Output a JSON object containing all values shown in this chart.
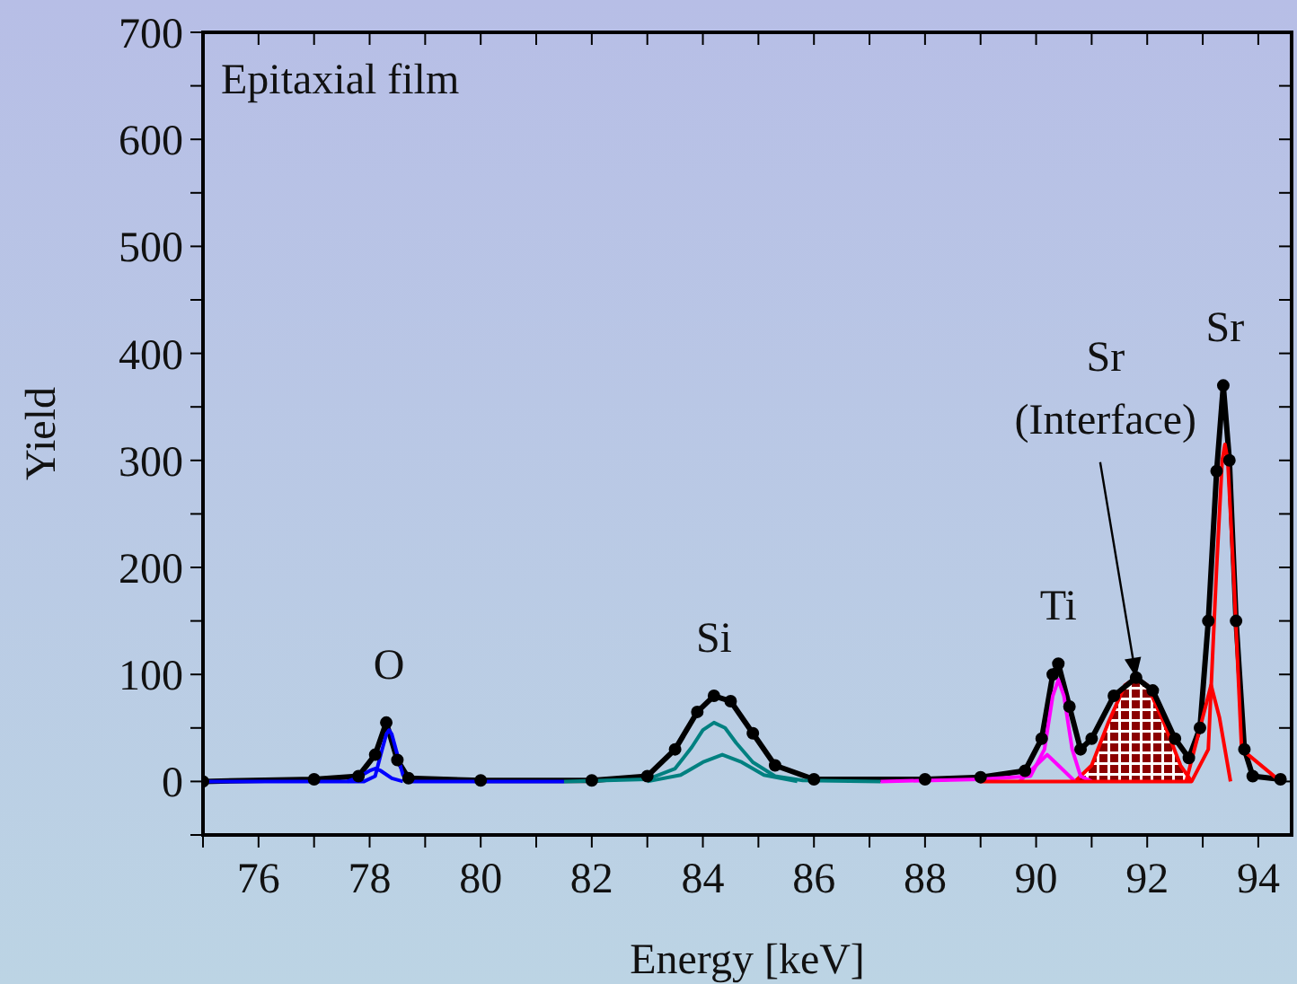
{
  "chart_data": {
    "type": "line",
    "xlabel": "Energy [keV]",
    "ylabel": "Yield",
    "xlim": [
      75,
      94.6
    ],
    "xticks": [
      {
        "value": 75,
        "label": null
      },
      76,
      {
        "value": 77,
        "label": null
      },
      78,
      {
        "value": 79,
        "label": null
      },
      80,
      {
        "value": 81,
        "label": null
      },
      82,
      {
        "value": 83,
        "label": null
      },
      84,
      {
        "value": 85,
        "label": null
      },
      86,
      {
        "value": 87,
        "label": null
      },
      88,
      {
        "value": 89,
        "label": null
      },
      90,
      {
        "value": 91,
        "label": null
      },
      92,
      {
        "value": 93,
        "label": null
      },
      94
    ],
    "ylim": [
      -50,
      700
    ],
    "yticks": [
      {
        "value": -50,
        "label": null
      },
      0,
      {
        "value": 50,
        "label": null
      },
      100,
      {
        "value": 150,
        "label": null
      },
      200,
      {
        "value": 250,
        "label": null
      },
      300,
      {
        "value": 350,
        "label": null
      },
      400,
      {
        "value": 450,
        "label": null
      },
      500,
      {
        "value": 550,
        "label": null
      },
      600,
      {
        "value": 650,
        "label": null
      },
      700
    ],
    "annotations": [
      "Epitaxial film",
      "O",
      "Si",
      "Ti",
      {
        "text": "Sr (Interface)",
        "x": 91.8,
        "y": 97
      },
      "Sr"
    ],
    "series": [
      {
        "color": "#0000ff",
        "x": [
          75,
          77.9,
          78.1,
          78.2,
          78.3,
          78.35,
          78.4,
          78.5,
          78.6,
          78.7,
          81.5
        ],
        "values": [
          0,
          0,
          5,
          25,
          44,
          48,
          44,
          25,
          6,
          0,
          0
        ]
      },
      {
        "color": "#0000ff",
        "x": [
          77.6,
          77.8,
          78,
          78.1,
          78.2,
          78.4,
          78.6
        ],
        "values": [
          0,
          4,
          10,
          12,
          10,
          3,
          0
        ]
      },
      {
        "color": "#008080",
        "x": [
          81.5,
          83,
          83.5,
          83.8,
          84,
          84.2,
          84.4,
          84.6,
          84.9,
          85.3,
          85.8,
          87.2
        ],
        "values": [
          0,
          2,
          12,
          32,
          48,
          55,
          50,
          36,
          18,
          5,
          1,
          0
        ]
      },
      {
        "color": "#008080",
        "x": [
          83,
          83.6,
          84,
          84.35,
          84.7,
          85.1,
          85.7
        ],
        "values": [
          0,
          6,
          18,
          25,
          18,
          6,
          0
        ]
      },
      {
        "color": "#ff00ff",
        "x": [
          87.2,
          89,
          89.9,
          90.15,
          90.3,
          90.4,
          90.5,
          90.65,
          90.8,
          91
        ],
        "values": [
          0,
          2,
          5,
          30,
          80,
          95,
          80,
          30,
          5,
          0
        ]
      },
      {
        "color": "#ff00ff",
        "x": [
          89.7,
          90,
          90.2,
          90.4,
          90.7
        ],
        "values": [
          0,
          15,
          25,
          15,
          0
        ]
      },
      {
        "type": "area",
        "color": "#ff0000",
        "x": [
          90.7,
          91,
          91.3,
          91.6,
          91.8,
          92,
          92.3,
          92.6,
          92.8
        ],
        "values": [
          0,
          15,
          55,
          90,
          97,
          90,
          55,
          15,
          0
        ]
      },
      {
        "color": "#ff0000",
        "x": [
          89,
          92.8,
          93.1,
          93.25,
          93.35,
          93.4,
          93.45,
          93.55,
          93.7,
          94.4
        ],
        "values": [
          0,
          0,
          30,
          200,
          300,
          315,
          300,
          200,
          30,
          0
        ]
      },
      {
        "color": "#ff0000",
        "x": [
          92.7,
          93,
          93.15,
          93.3,
          93.5
        ],
        "values": [
          0,
          60,
          90,
          60,
          0
        ]
      },
      {
        "color": "#000000",
        "marker": "circle",
        "x": [
          75,
          77,
          77.8,
          78.1,
          78.3,
          78.5,
          78.7,
          80,
          82,
          83,
          83.5,
          83.9,
          84.2,
          84.5,
          84.9,
          85.3,
          86,
          88,
          89,
          89.8,
          90.1,
          90.3,
          90.4,
          90.6,
          90.8,
          91,
          91.4,
          91.8,
          92.1,
          92.5,
          92.75,
          92.95,
          93.1,
          93.25,
          93.37,
          93.48,
          93.6,
          93.75,
          93.9,
          94.4
        ],
        "values": [
          0,
          2,
          5,
          25,
          55,
          20,
          3,
          1,
          1,
          5,
          30,
          65,
          80,
          75,
          45,
          15,
          2,
          2,
          4,
          10,
          40,
          100,
          110,
          70,
          30,
          40,
          80,
          97,
          85,
          40,
          22,
          50,
          150,
          290,
          370,
          300,
          150,
          30,
          5,
          2
        ]
      }
    ]
  }
}
